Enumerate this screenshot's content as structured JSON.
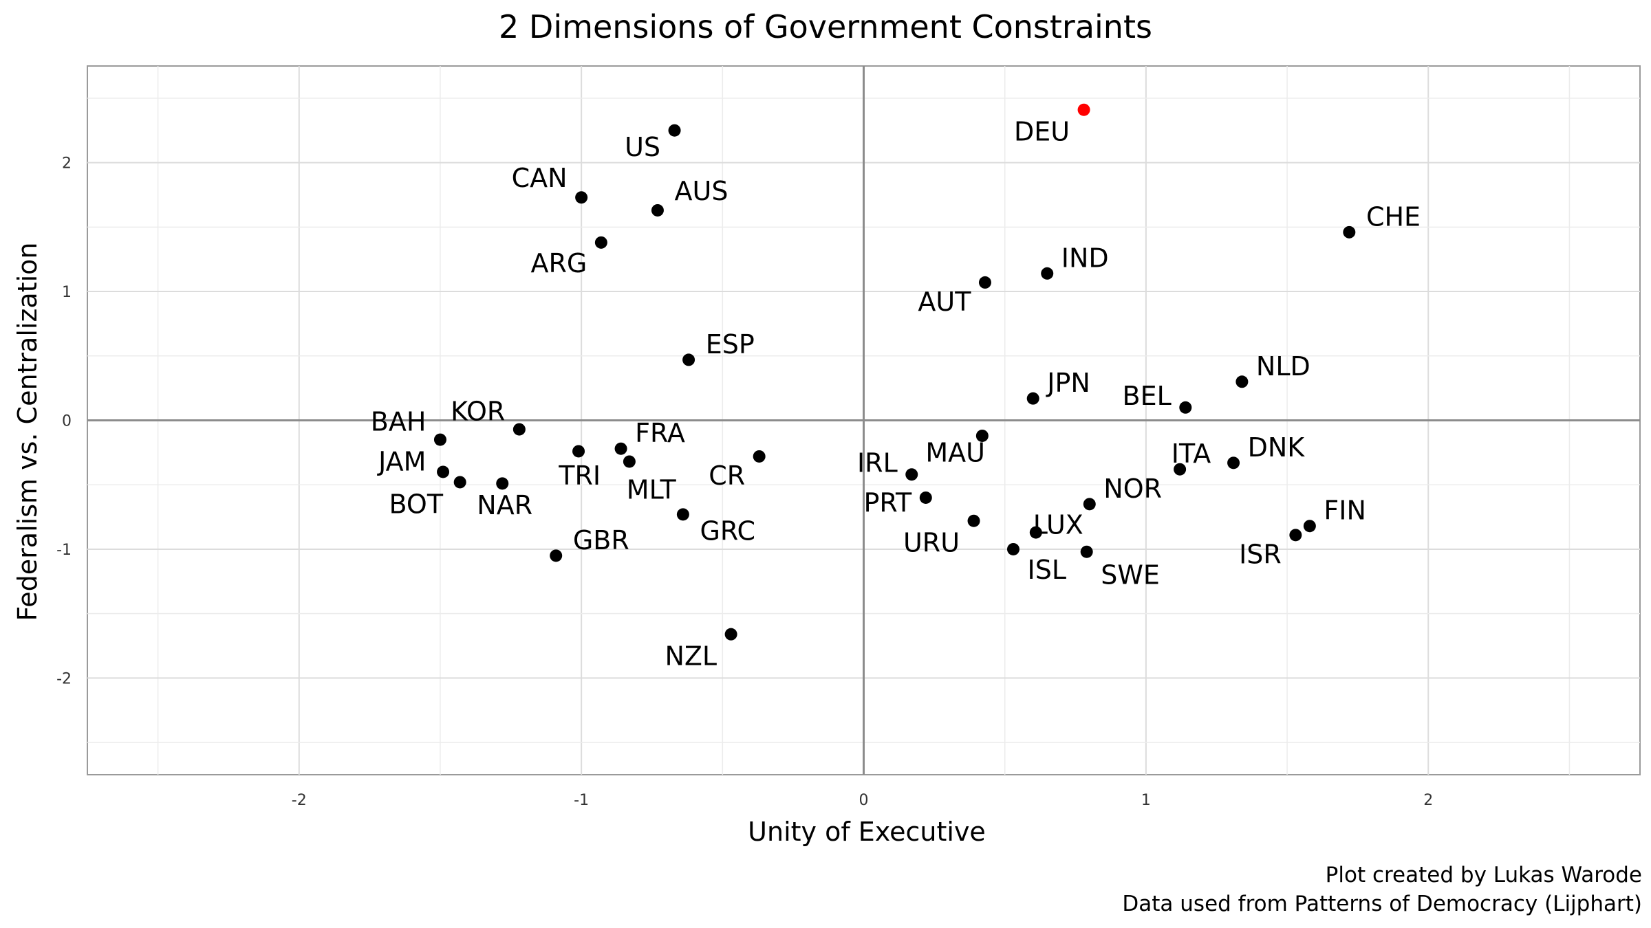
{
  "chart_data": {
    "type": "scatter",
    "title": "2 Dimensions of Government Constraints",
    "xlabel": "Unity of Executive",
    "ylabel": "Federalism vs. Centralization",
    "xlim": [
      -2.75,
      2.75
    ],
    "ylim": [
      -2.75,
      2.75
    ],
    "x_ticks": [
      "-2",
      "-1",
      "0",
      "1",
      "2"
    ],
    "y_ticks": [
      "2",
      "1",
      "0",
      "-1",
      "-2"
    ],
    "grid": true,
    "reference_lines": {
      "x": 0,
      "y": 0
    },
    "highlight_color": "#ff0000",
    "point_color": "#000000",
    "points": [
      {
        "label": "US",
        "x": -0.67,
        "y": 2.25,
        "anchor": "end",
        "dx": -0.05,
        "dy": -0.13
      },
      {
        "label": "CAN",
        "x": -1.0,
        "y": 1.73,
        "anchor": "end",
        "dx": -0.05,
        "dy": 0.15
      },
      {
        "label": "AUS",
        "x": -0.73,
        "y": 1.63,
        "anchor": "start",
        "dx": 0.06,
        "dy": 0.15
      },
      {
        "label": "ARG",
        "x": -0.93,
        "y": 1.38,
        "anchor": "end",
        "dx": -0.05,
        "dy": -0.16
      },
      {
        "label": "ESP",
        "x": -0.62,
        "y": 0.47,
        "anchor": "start",
        "dx": 0.06,
        "dy": 0.12
      },
      {
        "label": "BAH",
        "x": -1.5,
        "y": -0.15,
        "anchor": "end",
        "dx": -0.05,
        "dy": 0.14
      },
      {
        "label": "KOR",
        "x": -1.22,
        "y": -0.07,
        "anchor": "end",
        "dx": -0.05,
        "dy": 0.14
      },
      {
        "label": "JAM",
        "x": -1.49,
        "y": -0.4,
        "anchor": "end",
        "dx": -0.06,
        "dy": 0.08
      },
      {
        "label": "BOT",
        "x": -1.43,
        "y": -0.48,
        "anchor": "end",
        "dx": -0.06,
        "dy": -0.17
      },
      {
        "label": "NAR",
        "x": -1.28,
        "y": -0.49,
        "anchor": "start",
        "dx": -0.09,
        "dy": -0.17
      },
      {
        "label": "TRI",
        "x": -1.01,
        "y": -0.24,
        "anchor": "start",
        "dx": -0.07,
        "dy": -0.19
      },
      {
        "label": "FRA",
        "x": -0.86,
        "y": -0.22,
        "anchor": "start",
        "dx": 0.05,
        "dy": 0.12
      },
      {
        "label": "MLT",
        "x": -0.83,
        "y": -0.32,
        "anchor": "start",
        "dx": -0.01,
        "dy": -0.22
      },
      {
        "label": "CR",
        "x": -0.37,
        "y": -0.28,
        "anchor": "end",
        "dx": -0.05,
        "dy": -0.15
      },
      {
        "label": "GRC",
        "x": -0.64,
        "y": -0.73,
        "anchor": "start",
        "dx": 0.06,
        "dy": -0.13
      },
      {
        "label": "GBR",
        "x": -1.09,
        "y": -1.05,
        "anchor": "start",
        "dx": 0.06,
        "dy": 0.12
      },
      {
        "label": "NZL",
        "x": -0.47,
        "y": -1.66,
        "anchor": "end",
        "dx": -0.05,
        "dy": -0.17
      },
      {
        "label": "DEU",
        "x": 0.78,
        "y": 2.41,
        "anchor": "end",
        "dx": -0.05,
        "dy": -0.17,
        "highlight": true
      },
      {
        "label": "CHE",
        "x": 1.72,
        "y": 1.46,
        "anchor": "start",
        "dx": 0.06,
        "dy": 0.12
      },
      {
        "label": "IND",
        "x": 0.65,
        "y": 1.14,
        "anchor": "start",
        "dx": 0.05,
        "dy": 0.12
      },
      {
        "label": "AUT",
        "x": 0.43,
        "y": 1.07,
        "anchor": "end",
        "dx": -0.05,
        "dy": -0.15
      },
      {
        "label": "JPN",
        "x": 0.6,
        "y": 0.17,
        "anchor": "start",
        "dx": 0.05,
        "dy": 0.12
      },
      {
        "label": "NLD",
        "x": 1.34,
        "y": 0.3,
        "anchor": "start",
        "dx": 0.05,
        "dy": 0.12
      },
      {
        "label": "BEL",
        "x": 1.14,
        "y": 0.1,
        "anchor": "end",
        "dx": -0.05,
        "dy": 0.09
      },
      {
        "label": "MAU",
        "x": 0.42,
        "y": -0.12,
        "anchor": "end",
        "dx": 0.01,
        "dy": -0.13
      },
      {
        "label": "IRL",
        "x": 0.17,
        "y": -0.42,
        "anchor": "end",
        "dx": -0.05,
        "dy": 0.09
      },
      {
        "label": "PRT",
        "x": 0.22,
        "y": -0.6,
        "anchor": "end",
        "dx": -0.05,
        "dy": -0.04
      },
      {
        "label": "URU",
        "x": 0.39,
        "y": -0.78,
        "anchor": "end",
        "dx": -0.05,
        "dy": -0.17
      },
      {
        "label": "ITA",
        "x": 1.12,
        "y": -0.38,
        "anchor": "start",
        "dx": -0.03,
        "dy": 0.12
      },
      {
        "label": "DNK",
        "x": 1.31,
        "y": -0.33,
        "anchor": "start",
        "dx": 0.05,
        "dy": 0.12
      },
      {
        "label": "NOR",
        "x": 0.8,
        "y": -0.65,
        "anchor": "start",
        "dx": 0.05,
        "dy": 0.12
      },
      {
        "label": "LUX",
        "x": 0.61,
        "y": -0.87,
        "anchor": "start",
        "dx": -0.01,
        "dy": 0.06
      },
      {
        "label": "ISL",
        "x": 0.53,
        "y": -1.0,
        "anchor": "start",
        "dx": 0.05,
        "dy": -0.16
      },
      {
        "label": "SWE",
        "x": 0.79,
        "y": -1.02,
        "anchor": "start",
        "dx": 0.05,
        "dy": -0.18
      },
      {
        "label": "FIN",
        "x": 1.58,
        "y": -0.82,
        "anchor": "start",
        "dx": 0.05,
        "dy": 0.12
      },
      {
        "label": "ISR",
        "x": 1.53,
        "y": -0.89,
        "anchor": "end",
        "dx": -0.05,
        "dy": -0.15
      }
    ]
  },
  "caption": {
    "line1": "Plot created by Lukas Warode",
    "line2": "Data used from Patterns of Democracy (Lijphart)"
  }
}
